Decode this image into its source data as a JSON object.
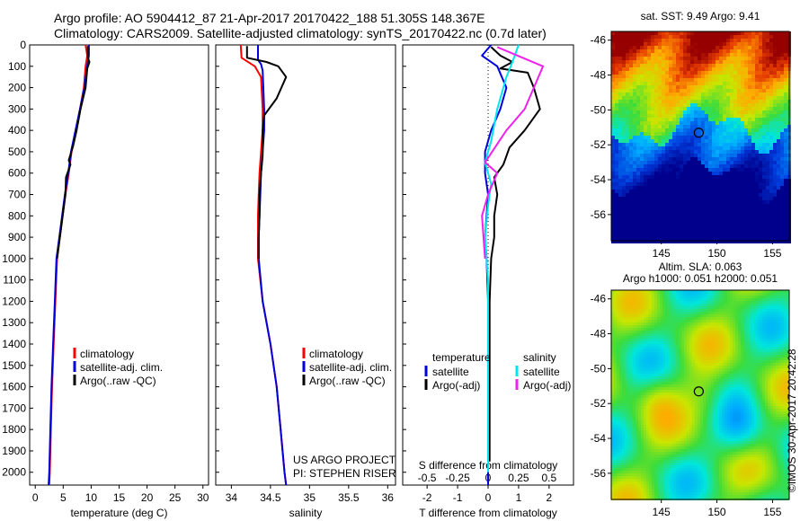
{
  "header": {
    "line1": "Argo profile: AO 5904412_87 21-Apr-2017 20170422_188 51.305S 148.367E",
    "line2": "Climatology: CARS2009. Satellite-adjusted climatology: synTS_20170422.nc (0.7d later)"
  },
  "watermark": "©IMOS 30-Apr-2017 20:42:28",
  "colors": {
    "climatology": "#ff0000",
    "satellite": "#0000dd",
    "argo": "#000000",
    "sat_salinity": "#00e5ee",
    "argo_salinity": "#ee22ee"
  },
  "chart_data": [
    {
      "id": "temperature",
      "type": "line",
      "xlabel": "temperature (deg C)",
      "ylabel": "",
      "xlim": [
        -1,
        31
      ],
      "ylim": [
        2060,
        0
      ],
      "xticks": [
        0,
        5,
        10,
        15,
        20,
        25,
        30
      ],
      "yticks": [
        0,
        100,
        200,
        300,
        400,
        500,
        600,
        700,
        800,
        900,
        1000,
        1100,
        1200,
        1300,
        1400,
        1500,
        1600,
        1700,
        1800,
        1900,
        2000
      ],
      "legend": [
        "climatology",
        "satellite-adj. clim.",
        "Argo(..raw -QC)"
      ],
      "series": [
        {
          "name": "climatology",
          "color": "#ff0000",
          "points": [
            [
              9.0,
              0
            ],
            [
              9.3,
              50
            ],
            [
              9.0,
              100
            ],
            [
              8.7,
              200
            ],
            [
              8.0,
              300
            ],
            [
              7.3,
              400
            ],
            [
              6.5,
              500
            ],
            [
              6.0,
              600
            ],
            [
              5.4,
              700
            ],
            [
              4.9,
              800
            ],
            [
              4.4,
              900
            ],
            [
              3.9,
              1000
            ],
            [
              3.6,
              1200
            ],
            [
              3.3,
              1400
            ],
            [
              3.0,
              1600
            ],
            [
              2.8,
              1800
            ],
            [
              2.6,
              2000
            ],
            [
              2.5,
              2060
            ]
          ]
        },
        {
          "name": "satellite-adj. clim.",
          "color": "#0000dd",
          "points": [
            [
              9.6,
              0
            ],
            [
              9.6,
              50
            ],
            [
              9.3,
              100
            ],
            [
              8.8,
              200
            ],
            [
              8.0,
              300
            ],
            [
              7.2,
              400
            ],
            [
              6.4,
              500
            ],
            [
              5.9,
              600
            ],
            [
              5.3,
              700
            ],
            [
              4.8,
              800
            ],
            [
              4.3,
              900
            ],
            [
              3.8,
              1000
            ],
            [
              3.5,
              1200
            ],
            [
              3.2,
              1400
            ],
            [
              2.9,
              1600
            ],
            [
              2.7,
              1800
            ],
            [
              2.5,
              2000
            ],
            [
              2.4,
              2060
            ]
          ]
        },
        {
          "name": "Argo(..raw -QC)",
          "color": "#000000",
          "points": [
            [
              9.4,
              5
            ],
            [
              9.4,
              60
            ],
            [
              9.7,
              80
            ],
            [
              9.3,
              110
            ],
            [
              9.0,
              200
            ],
            [
              8.1,
              300
            ],
            [
              7.4,
              400
            ],
            [
              6.8,
              470
            ],
            [
              6.0,
              540
            ],
            [
              6.3,
              560
            ],
            [
              5.5,
              620
            ],
            [
              5.4,
              700
            ],
            [
              4.9,
              800
            ],
            [
              4.4,
              900
            ],
            [
              3.9,
              1000
            ]
          ]
        }
      ]
    },
    {
      "id": "salinity",
      "type": "line",
      "xlabel": "salinity",
      "ylabel": "",
      "xlim": [
        33.8,
        36.1
      ],
      "ylim": [
        2060,
        0
      ],
      "xticks": [
        34,
        34.5,
        35,
        35.5,
        36
      ],
      "legend": [
        "climatology",
        "satellite-adj. clim.",
        "Argo(..raw -QC)"
      ],
      "annotations": [
        "US ARGO PROJECT",
        "PI: STEPHEN RISER"
      ],
      "series": [
        {
          "name": "climatology",
          "color": "#ff0000",
          "points": [
            [
              34.12,
              0
            ],
            [
              34.13,
              60
            ],
            [
              34.3,
              100
            ],
            [
              34.38,
              150
            ],
            [
              34.4,
              300
            ],
            [
              34.4,
              400
            ],
            [
              34.38,
              500
            ],
            [
              34.36,
              600
            ],
            [
              34.35,
              700
            ],
            [
              34.34,
              800
            ],
            [
              34.34,
              900
            ],
            [
              34.34,
              1000
            ],
            [
              34.4,
              1200
            ],
            [
              34.5,
              1400
            ],
            [
              34.58,
              1600
            ],
            [
              34.63,
              1800
            ],
            [
              34.68,
              2000
            ],
            [
              34.7,
              2060
            ]
          ]
        },
        {
          "name": "satellite-adj. clim.",
          "color": "#0000dd",
          "points": [
            [
              34.34,
              0
            ],
            [
              34.34,
              70
            ],
            [
              34.38,
              90
            ],
            [
              34.4,
              120
            ],
            [
              34.42,
              300
            ],
            [
              34.42,
              400
            ],
            [
              34.4,
              500
            ],
            [
              34.38,
              600
            ],
            [
              34.37,
              700
            ],
            [
              34.36,
              800
            ],
            [
              34.35,
              900
            ],
            [
              34.35,
              1000
            ],
            [
              34.4,
              1200
            ],
            [
              34.5,
              1400
            ],
            [
              34.58,
              1600
            ],
            [
              34.63,
              1800
            ],
            [
              34.68,
              2000
            ],
            [
              34.7,
              2060
            ]
          ]
        },
        {
          "name": "Argo(..raw -QC)",
          "color": "#000000",
          "points": [
            [
              34.2,
              5
            ],
            [
              34.2,
              60
            ],
            [
              34.45,
              80
            ],
            [
              34.6,
              100
            ],
            [
              34.7,
              150
            ],
            [
              34.58,
              250
            ],
            [
              34.42,
              330
            ],
            [
              34.4,
              400
            ],
            [
              34.4,
              470
            ],
            [
              34.4,
              520
            ],
            [
              34.38,
              600
            ],
            [
              34.36,
              700
            ],
            [
              34.36,
              800
            ],
            [
              34.35,
              900
            ],
            [
              34.35,
              1000
            ]
          ]
        }
      ]
    },
    {
      "id": "differences",
      "type": "line",
      "xlabel": "T difference from climatology",
      "xlabel2": "S difference from climatology",
      "xlim": [
        -2.8,
        2.8
      ],
      "ylim": [
        2060,
        0
      ],
      "xticks": [
        -2,
        -1,
        0,
        1,
        2
      ],
      "xticks2_labels": [
        "-0.5",
        "-0.25",
        "0",
        "0.25",
        "0.5"
      ],
      "xticks2_values": [
        -2,
        -1,
        0,
        1,
        2
      ],
      "legend_headers": [
        "temperature",
        "salinity"
      ],
      "legend": [
        "satellite",
        "Argo(-adj)",
        "satellite",
        "Argo(-adj)"
      ],
      "series": [
        {
          "name": "satellite",
          "group": "temperature",
          "color": "#0000dd",
          "points": [
            [
              0.1,
              0
            ],
            [
              -0.2,
              50
            ],
            [
              0.3,
              100
            ],
            [
              0.6,
              200
            ],
            [
              0.4,
              300
            ],
            [
              0.1,
              400
            ],
            [
              -0.1,
              500
            ],
            [
              -0.1,
              600
            ],
            [
              0.0,
              700
            ],
            [
              -0.05,
              800
            ],
            [
              -0.1,
              900
            ],
            [
              -0.05,
              1000
            ],
            [
              0,
              1200
            ],
            [
              0,
              1400
            ],
            [
              0,
              1600
            ],
            [
              0,
              1800
            ],
            [
              0,
              2000
            ],
            [
              0,
              2060
            ]
          ]
        },
        {
          "name": "Argo(-adj)",
          "group": "temperature",
          "color": "#000000",
          "points": [
            [
              0.1,
              10
            ],
            [
              0.4,
              50
            ],
            [
              0.8,
              80
            ],
            [
              0.4,
              110
            ],
            [
              1.3,
              130
            ],
            [
              1.5,
              200
            ],
            [
              1.7,
              300
            ],
            [
              1.2,
              400
            ],
            [
              0.7,
              480
            ],
            [
              0.5,
              560
            ],
            [
              0.2,
              620
            ],
            [
              0.3,
              700
            ],
            [
              0.2,
              800
            ],
            [
              0.2,
              900
            ],
            [
              0.1,
              1000
            ],
            [
              0.05,
              1200
            ],
            [
              0.05,
              1400
            ],
            [
              0.05,
              1600
            ],
            [
              0.05,
              1800
            ],
            [
              0.05,
              1950
            ]
          ]
        },
        {
          "name": "satellite",
          "group": "salinity",
          "color": "#00e5ee",
          "points": [
            [
              1.0,
              0
            ],
            [
              0.8,
              80
            ],
            [
              0.6,
              150
            ],
            [
              0.3,
              300
            ],
            [
              0.1,
              450
            ],
            [
              -0.1,
              550
            ],
            [
              0.1,
              650
            ],
            [
              0.0,
              750
            ],
            [
              -0.1,
              900
            ],
            [
              0.0,
              1100
            ],
            [
              0,
              1400
            ],
            [
              0,
              1700
            ],
            [
              0,
              2000
            ]
          ]
        },
        {
          "name": "Argo(-adj)",
          "group": "salinity",
          "color": "#ee22ee",
          "points": [
            [
              0.3,
              10
            ],
            [
              1.8,
              100
            ],
            [
              1.5,
              200
            ],
            [
              1.2,
              300
            ],
            [
              0.6,
              400
            ],
            [
              -0.1,
              550
            ],
            [
              0.3,
              600
            ],
            [
              0.0,
              700
            ],
            [
              -0.2,
              800
            ],
            [
              -0.1,
              1000
            ]
          ]
        }
      ]
    },
    {
      "id": "sst_map",
      "type": "heatmap",
      "title": "sat. SST: 9.49 Argo: 9.41",
      "xticks": [
        145,
        150,
        155
      ],
      "yticks": [
        -46,
        -48,
        -50,
        -52,
        -54,
        -56
      ],
      "xlim": [
        140.5,
        156.5
      ],
      "ylim": [
        -57.5,
        -45.5
      ],
      "marker": [
        148.367,
        -51.305
      ]
    },
    {
      "id": "sla_map",
      "type": "heatmap",
      "title": "Altim. SLA: 0.063",
      "subtitle": "Argo h1000: 0.051 h2000: 0.051",
      "xticks": [
        145,
        150,
        155
      ],
      "yticks": [
        -46,
        -48,
        -50,
        -52,
        -54,
        -56
      ],
      "xlim": [
        140.5,
        156.5
      ],
      "ylim": [
        -57.5,
        -45.5
      ],
      "marker": [
        148.367,
        -51.305
      ]
    }
  ]
}
